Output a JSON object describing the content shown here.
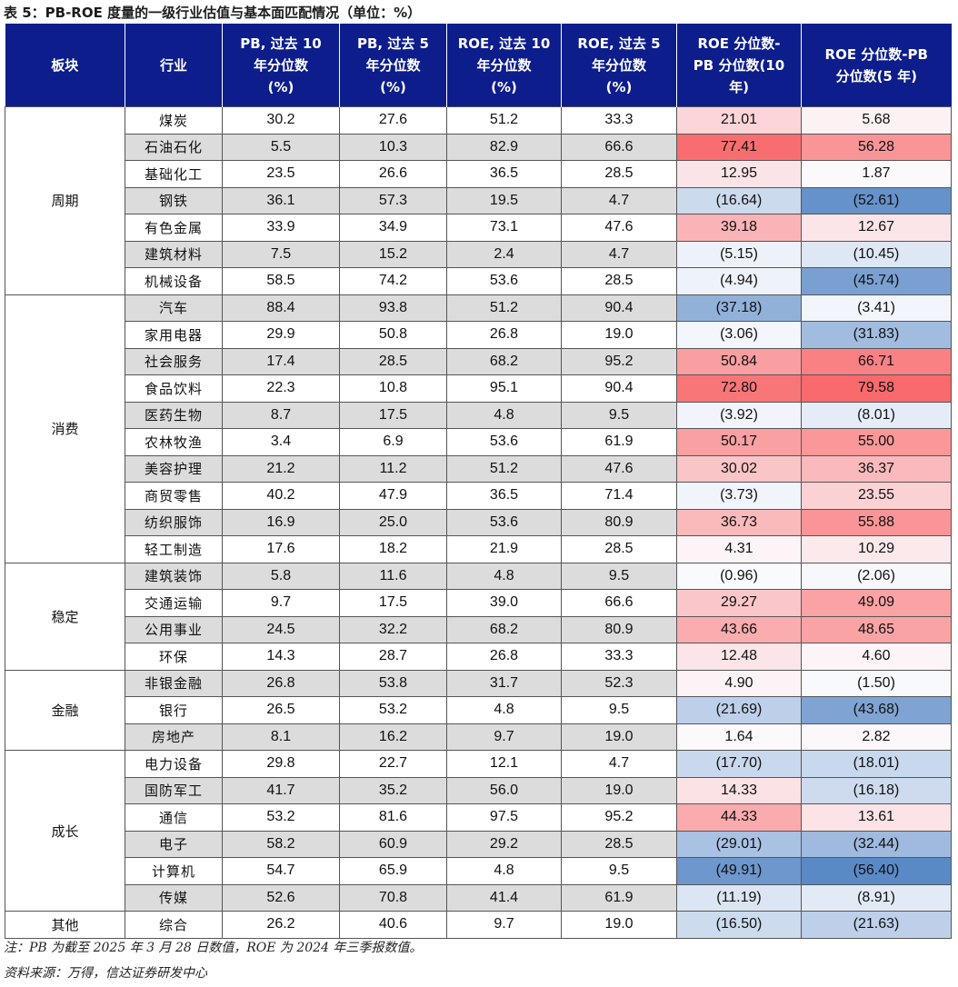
{
  "title": "表 5：PB-ROE 度量的一级行业估值与基本面匹配情况（单位：%）",
  "headers": [
    [
      "板块"
    ],
    [
      "行业"
    ],
    [
      "PB, 过去 10",
      "年分位数",
      "(%)"
    ],
    [
      "PB, 过去 5",
      "年分位数",
      "(%)"
    ],
    [
      "ROE, 过去 10",
      "年分位数",
      "(%)"
    ],
    [
      "ROE, 过去 5",
      "年分位数",
      "(%)"
    ],
    [
      "ROE 分位数-",
      "PB 分位数(10",
      "年)"
    ],
    [
      "ROE 分位数-PB",
      "分位数(5 年)"
    ]
  ],
  "sectors": [
    {
      "name": "周期",
      "rows": [
        {
          "industry": "煤炭",
          "pb10": "30.2",
          "pb5": "27.6",
          "roe10": "51.2",
          "roe5": "33.3",
          "d10": "21.01",
          "d5": "5.68"
        },
        {
          "industry": "石油石化",
          "pb10": "5.5",
          "pb5": "10.3",
          "roe10": "82.9",
          "roe5": "66.6",
          "d10": "77.41",
          "d5": "56.28"
        },
        {
          "industry": "基础化工",
          "pb10": "23.5",
          "pb5": "26.6",
          "roe10": "36.5",
          "roe5": "28.5",
          "d10": "12.95",
          "d5": "1.87"
        },
        {
          "industry": "钢铁",
          "pb10": "36.1",
          "pb5": "57.3",
          "roe10": "19.5",
          "roe5": "4.7",
          "d10": "(16.64)",
          "d5": "(52.61)"
        },
        {
          "industry": "有色金属",
          "pb10": "33.9",
          "pb5": "34.9",
          "roe10": "73.1",
          "roe5": "47.6",
          "d10": "39.18",
          "d5": "12.67"
        },
        {
          "industry": "建筑材料",
          "pb10": "7.5",
          "pb5": "15.2",
          "roe10": "2.4",
          "roe5": "4.7",
          "d10": "(5.15)",
          "d5": "(10.45)"
        },
        {
          "industry": "机械设备",
          "pb10": "58.5",
          "pb5": "74.2",
          "roe10": "53.6",
          "roe5": "28.5",
          "d10": "(4.94)",
          "d5": "(45.74)"
        }
      ]
    },
    {
      "name": "消费",
      "rows": [
        {
          "industry": "汽车",
          "pb10": "88.4",
          "pb5": "93.8",
          "roe10": "51.2",
          "roe5": "90.4",
          "d10": "(37.18)",
          "d5": "(3.41)"
        },
        {
          "industry": "家用电器",
          "pb10": "29.9",
          "pb5": "50.8",
          "roe10": "26.8",
          "roe5": "19.0",
          "d10": "(3.06)",
          "d5": "(31.83)"
        },
        {
          "industry": "社会服务",
          "pb10": "17.4",
          "pb5": "28.5",
          "roe10": "68.2",
          "roe5": "95.2",
          "d10": "50.84",
          "d5": "66.71"
        },
        {
          "industry": "食品饮料",
          "pb10": "22.3",
          "pb5": "10.8",
          "roe10": "95.1",
          "roe5": "90.4",
          "d10": "72.80",
          "d5": "79.58"
        },
        {
          "industry": "医药生物",
          "pb10": "8.7",
          "pb5": "17.5",
          "roe10": "4.8",
          "roe5": "9.5",
          "d10": "(3.92)",
          "d5": "(8.01)"
        },
        {
          "industry": "农林牧渔",
          "pb10": "3.4",
          "pb5": "6.9",
          "roe10": "53.6",
          "roe5": "61.9",
          "d10": "50.17",
          "d5": "55.00"
        },
        {
          "industry": "美容护理",
          "pb10": "21.2",
          "pb5": "11.2",
          "roe10": "51.2",
          "roe5": "47.6",
          "d10": "30.02",
          "d5": "36.37"
        },
        {
          "industry": "商贸零售",
          "pb10": "40.2",
          "pb5": "47.9",
          "roe10": "36.5",
          "roe5": "71.4",
          "d10": "(3.73)",
          "d5": "23.55"
        },
        {
          "industry": "纺织服饰",
          "pb10": "16.9",
          "pb5": "25.0",
          "roe10": "53.6",
          "roe5": "80.9",
          "d10": "36.73",
          "d5": "55.88"
        },
        {
          "industry": "轻工制造",
          "pb10": "17.6",
          "pb5": "18.2",
          "roe10": "21.9",
          "roe5": "28.5",
          "d10": "4.31",
          "d5": "10.29"
        }
      ]
    },
    {
      "name": "稳定",
      "rows": [
        {
          "industry": "建筑装饰",
          "pb10": "5.8",
          "pb5": "11.6",
          "roe10": "4.8",
          "roe5": "9.5",
          "d10": "(0.96)",
          "d5": "(2.06)"
        },
        {
          "industry": "交通运输",
          "pb10": "9.7",
          "pb5": "17.5",
          "roe10": "39.0",
          "roe5": "66.6",
          "d10": "29.27",
          "d5": "49.09"
        },
        {
          "industry": "公用事业",
          "pb10": "24.5",
          "pb5": "32.2",
          "roe10": "68.2",
          "roe5": "80.9",
          "d10": "43.66",
          "d5": "48.65"
        },
        {
          "industry": "环保",
          "pb10": "14.3",
          "pb5": "28.7",
          "roe10": "26.8",
          "roe5": "33.3",
          "d10": "12.48",
          "d5": "4.60"
        }
      ]
    },
    {
      "name": "金融",
      "rows": [
        {
          "industry": "非银金融",
          "pb10": "26.8",
          "pb5": "53.8",
          "roe10": "31.7",
          "roe5": "52.3",
          "d10": "4.90",
          "d5": "(1.50)"
        },
        {
          "industry": "银行",
          "pb10": "26.5",
          "pb5": "53.2",
          "roe10": "4.8",
          "roe5": "9.5",
          "d10": "(21.69)",
          "d5": "(43.68)"
        },
        {
          "industry": "房地产",
          "pb10": "8.1",
          "pb5": "16.2",
          "roe10": "9.7",
          "roe5": "19.0",
          "d10": "1.64",
          "d5": "2.82"
        }
      ]
    },
    {
      "name": "成长",
      "rows": [
        {
          "industry": "电力设备",
          "pb10": "29.8",
          "pb5": "22.7",
          "roe10": "12.1",
          "roe5": "4.7",
          "d10": "(17.70)",
          "d5": "(18.01)"
        },
        {
          "industry": "国防军工",
          "pb10": "41.7",
          "pb5": "35.2",
          "roe10": "56.0",
          "roe5": "19.0",
          "d10": "14.33",
          "d5": "(16.18)"
        },
        {
          "industry": "通信",
          "pb10": "53.2",
          "pb5": "81.6",
          "roe10": "97.5",
          "roe5": "95.2",
          "d10": "44.33",
          "d5": "13.61"
        },
        {
          "industry": "电子",
          "pb10": "58.2",
          "pb5": "60.9",
          "roe10": "29.2",
          "roe5": "28.5",
          "d10": "(29.01)",
          "d5": "(32.44)"
        },
        {
          "industry": "计算机",
          "pb10": "54.7",
          "pb5": "65.9",
          "roe10": "4.8",
          "roe5": "9.5",
          "d10": "(49.91)",
          "d5": "(56.40)"
        },
        {
          "industry": "传媒",
          "pb10": "52.6",
          "pb5": "70.8",
          "roe10": "41.4",
          "roe5": "61.9",
          "d10": "(11.19)",
          "d5": "(8.91)"
        }
      ]
    },
    {
      "name": "其他",
      "rows": [
        {
          "industry": "综合",
          "pb10": "26.2",
          "pb5": "40.6",
          "roe10": "9.7",
          "roe5": "19.0",
          "d10": "(16.50)",
          "d5": "(21.63)"
        }
      ]
    }
  ],
  "colors": {
    "header_bg": "#0d1d8c",
    "positive": "#f8696b",
    "negative": "#5a8ac6",
    "shade": "#dcdcdc"
  },
  "note": "注：PB 为截至 2025 年 3 月 28 日数值，ROE 为 2024 年三季报数值。",
  "source": "资料来源：万得，信达证券研发中心"
}
